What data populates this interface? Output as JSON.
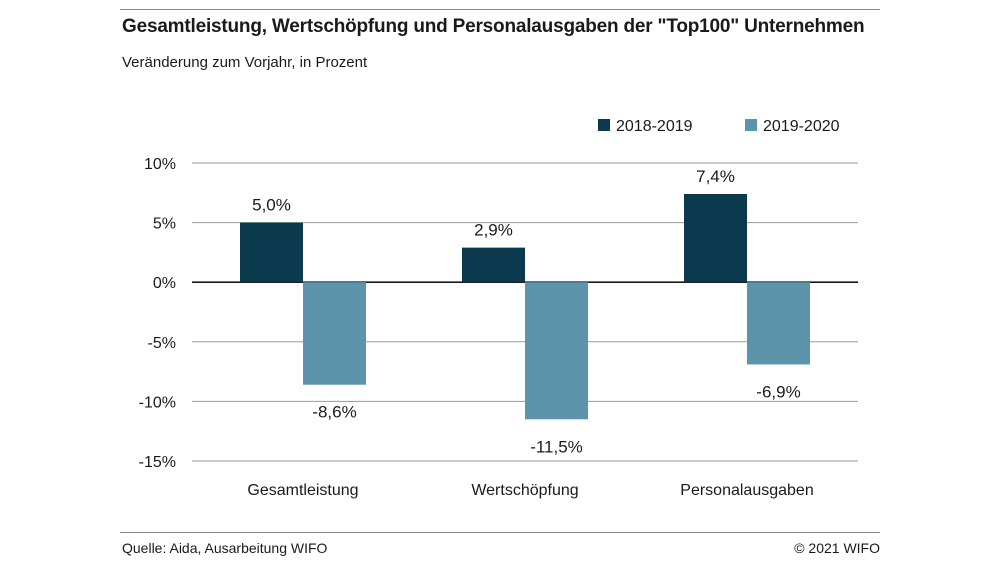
{
  "header": {
    "title": "Gesamtleistung, Wertschöpfung und Personalausgaben der \"Top100\" Unternehmen",
    "subtitle": "Veränderung zum Vorjahr, in Prozent"
  },
  "footer": {
    "source": "Quelle: Aida, Ausarbeitung WIFO",
    "copyright": "© 2021 WIFO"
  },
  "chart_data": {
    "type": "bar",
    "categories": [
      "Gesamtleistung",
      "Wertschöpfung",
      "Personalausgaben"
    ],
    "series": [
      {
        "name": "2018-2019",
        "values": [
          5.0,
          2.9,
          7.4
        ],
        "labels": [
          "5,0%",
          "2,9%",
          "7,4%"
        ],
        "color": "#0b3a4f"
      },
      {
        "name": "2019-2020",
        "values": [
          -8.6,
          -11.5,
          -6.9
        ],
        "labels": [
          "-8,6%",
          "-11,5%",
          "-6,9%"
        ],
        "color": "#5b94ab"
      }
    ],
    "ylim": [
      -15,
      10
    ],
    "yticks": [
      10,
      5,
      0,
      -5,
      -10,
      -15
    ],
    "ytick_labels": [
      "10%",
      "5%",
      "0%",
      "-5%",
      "-10%",
      "-15%"
    ],
    "grid": true,
    "legend": "top-right",
    "xlabel": "",
    "ylabel": ""
  }
}
